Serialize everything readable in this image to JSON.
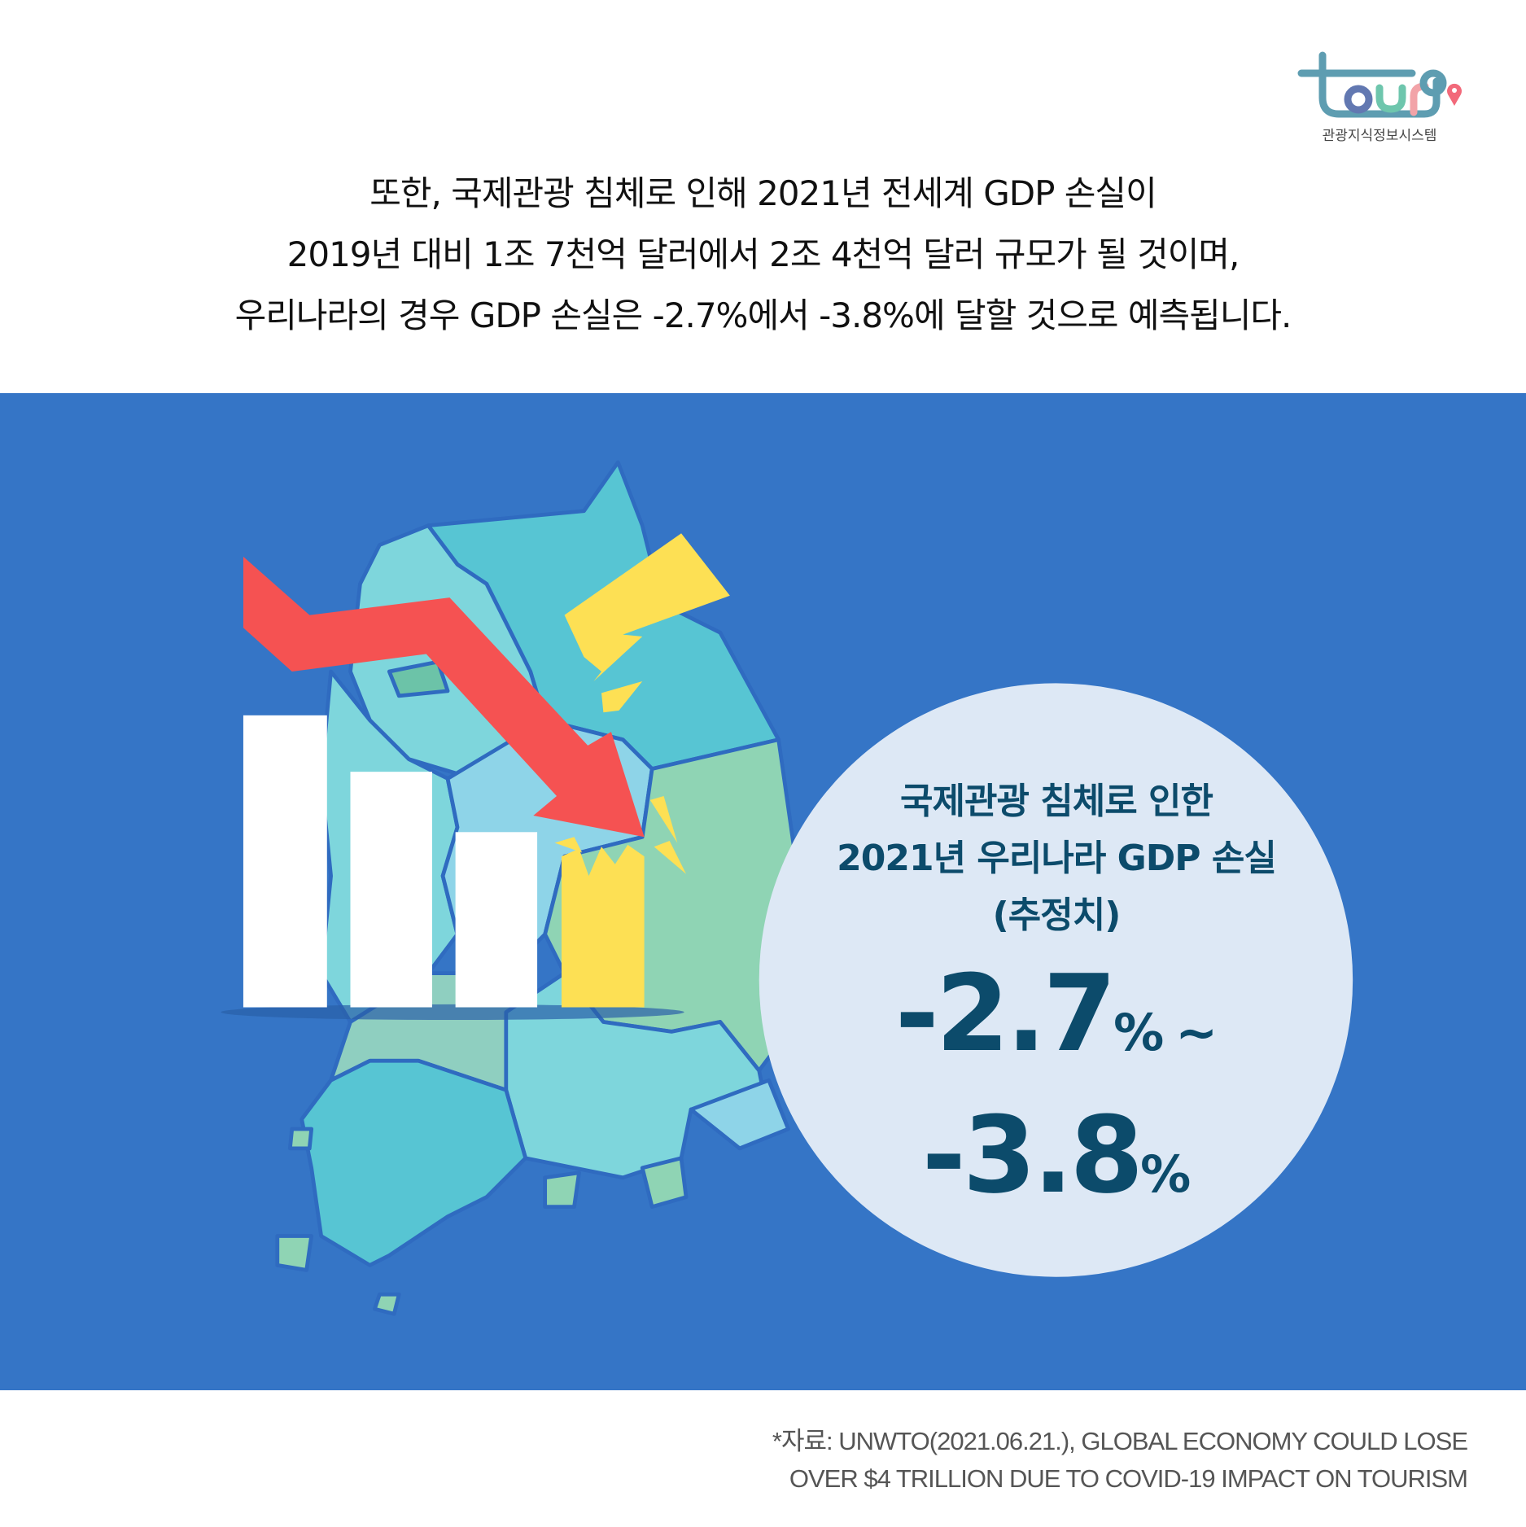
{
  "logo": {
    "wordmark": "tour9",
    "subtitle": "관광지식정보시스템",
    "colors": {
      "frame": "#5e9db1",
      "o": "#6278b1",
      "u": "#6ec6ad",
      "r": "#f2a3a8",
      "pin": "#f2697a"
    }
  },
  "intro": {
    "lines": [
      "또한, 국제관광 침체로 인해 2021년 전세계 GDP 손실이",
      "2019년 대비 1조 7천억 달러에서 2조 4천억 달러 규모가 될 것이며,",
      "우리나라의 경우 GDP 손실은 -2.7%에서 -3.8%에 달할 것으로 예측됩니다."
    ]
  },
  "highlight": {
    "lines": [
      "국제관광 침체로 인한",
      "2021년 우리나라 GDP 손실",
      "(추정치)"
    ],
    "value_1": "-2.7",
    "unit_1": "%",
    "tilde": "~",
    "value_2": "-3.8",
    "unit_2": "%"
  },
  "source": {
    "lines": [
      "*자료: UNWTO(2021.06.21.), GLOBAL ECONOMY COULD LOSE",
      "OVER $4 TRILLION DUE TO COVID-19 IMPACT ON TOURISM"
    ]
  },
  "colors": {
    "panel": "#3575c6",
    "circle": "#dde8f5",
    "arrow": "#f55252",
    "accent_yellow": "#fde054",
    "text_dark": "#0c4b6b"
  }
}
